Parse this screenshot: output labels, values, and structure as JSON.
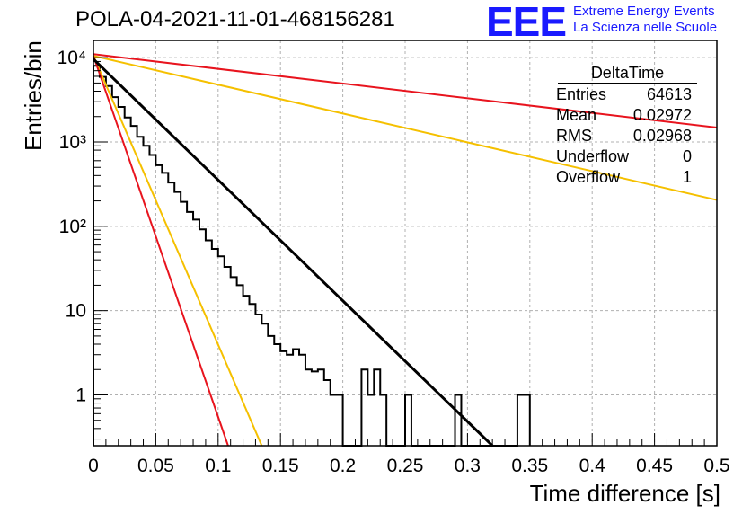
{
  "header": {
    "title": "POLA-04-2021-11-01-468156281",
    "logo_text": "EEE",
    "logo_line1": "Extreme Energy Events",
    "logo_line2": "La Scienza nelle Scuole"
  },
  "stats_box": {
    "title": "DeltaTime",
    "rows": [
      {
        "label": "Entries",
        "value": "64613"
      },
      {
        "label": "Mean",
        "value": "0.02972"
      },
      {
        "label": "RMS",
        "value": "0.02968"
      },
      {
        "label": "Underflow",
        "value": "0"
      },
      {
        "label": "Overflow",
        "value": "1"
      }
    ]
  },
  "chart_data": {
    "type": "line",
    "title": "POLA-04-2021-11-01-468156281",
    "xlabel": "Time difference [s]",
    "ylabel": "Entries/bin",
    "xlim": [
      0,
      0.5
    ],
    "ylim": [
      0.25,
      16000
    ],
    "yscale": "log",
    "grid": true,
    "x_ticks": [
      "0",
      "0.05",
      "0.1",
      "0.15",
      "0.2",
      "0.25",
      "0.3",
      "0.35",
      "0.4",
      "0.45",
      "0.5"
    ],
    "y_ticks": [
      "1",
      "10",
      "10²",
      "10³",
      "10⁴"
    ],
    "colors": {
      "histogram": "#000000",
      "fit": "#000000",
      "red": "#e8141e",
      "yellow": "#f5c000",
      "grid": "#b0b0b0"
    },
    "series": [
      {
        "kind": "line",
        "color": "#e8141e",
        "x": [
          0,
          0.5
        ],
        "y": [
          11000,
          1480
        ]
      },
      {
        "kind": "line",
        "color": "#f5c000",
        "x": [
          0,
          0.5
        ],
        "y": [
          10500,
          205
        ]
      },
      {
        "kind": "line",
        "color": "#f5c000",
        "x": [
          0,
          0.135
        ],
        "y": [
          10500,
          0.25
        ]
      },
      {
        "kind": "line",
        "color": "#e8141e",
        "x": [
          0,
          0.108
        ],
        "y": [
          10500,
          0.25
        ]
      },
      {
        "kind": "fit",
        "color": "#000000",
        "x": [
          0,
          0.32
        ],
        "y": [
          9600,
          0.25
        ]
      }
    ],
    "histogram": {
      "bin_width": 0.005,
      "bin_starts": [
        0.0,
        0.005,
        0.01,
        0.015,
        0.02,
        0.025,
        0.03,
        0.035,
        0.04,
        0.045,
        0.05,
        0.055,
        0.06,
        0.065,
        0.07,
        0.075,
        0.08,
        0.085,
        0.09,
        0.095,
        0.1,
        0.105,
        0.11,
        0.115,
        0.12,
        0.125,
        0.13,
        0.135,
        0.14,
        0.145,
        0.15,
        0.155,
        0.16,
        0.165,
        0.17,
        0.175,
        0.18,
        0.185,
        0.19,
        0.195,
        0.2,
        0.205,
        0.21,
        0.215,
        0.22,
        0.225,
        0.23,
        0.235,
        0.24,
        0.245,
        0.25,
        0.255,
        0.26,
        0.265,
        0.27,
        0.275,
        0.28,
        0.285,
        0.29,
        0.295,
        0.3,
        0.305,
        0.31,
        0.315,
        0.32,
        0.325,
        0.33,
        0.335,
        0.34,
        0.345
      ],
      "values": [
        8000,
        5900,
        4600,
        3400,
        2600,
        1950,
        1550,
        1150,
        900,
        700,
        530,
        430,
        330,
        255,
        195,
        148,
        120,
        92,
        68,
        54,
        44,
        33,
        25,
        20,
        15,
        12,
        9,
        7,
        5,
        4,
        3.3,
        3,
        3.5,
        3,
        2,
        1.9,
        2,
        1.5,
        1,
        1,
        0.25,
        0.25,
        0.25,
        2,
        1,
        2,
        1,
        0.25,
        0.25,
        0.25,
        1,
        0.25,
        0.25,
        0.25,
        0.25,
        0.25,
        0.25,
        0.25,
        1,
        0.25,
        0.25,
        0.25,
        0.25,
        0.25,
        0.25,
        0.25,
        0.25,
        0.25,
        1,
        1
      ]
    }
  }
}
